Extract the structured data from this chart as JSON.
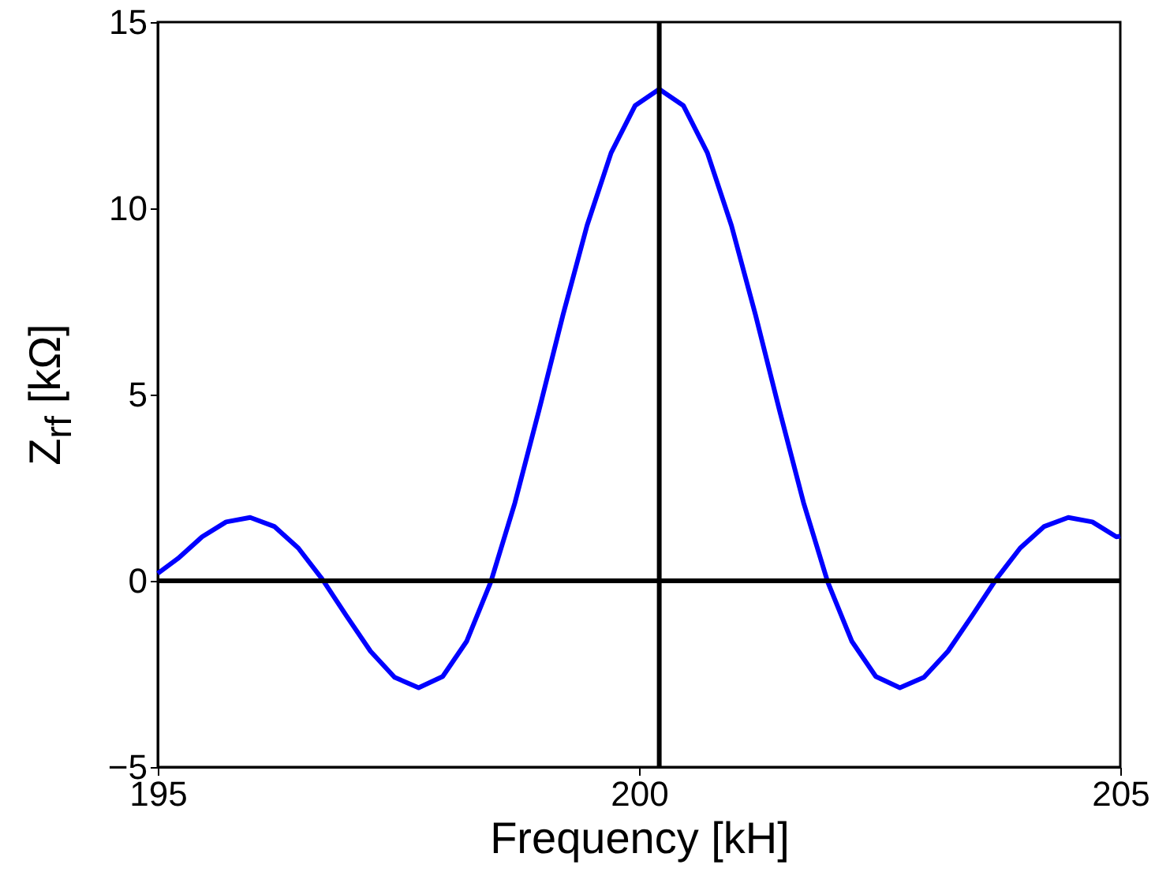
{
  "chart_data": {
    "type": "line",
    "xlabel": "Frequency [kH]",
    "ylabel": "Z$_{rf}$ [kΩ]",
    "x": [
      195,
      195.21,
      195.46,
      195.71,
      195.96,
      196.21,
      196.46,
      196.71,
      196.96,
      197.21,
      197.46,
      197.71,
      197.96,
      198.21,
      198.46,
      198.71,
      198.96,
      199.21,
      199.46,
      199.71,
      199.96,
      200.21,
      200.46,
      200.71,
      200.96,
      201.21,
      201.46,
      201.71,
      201.96,
      202.21,
      202.46,
      202.71,
      202.96,
      203.21,
      203.46,
      203.71,
      203.96,
      204.21,
      204.46,
      204.71,
      204.96,
      205
    ],
    "series": [
      {
        "color": "#0000ff",
        "values": [
          0.2,
          0.6,
          1.18,
          1.58,
          1.7,
          1.46,
          0.88,
          0.04,
          -0.94,
          -1.89,
          -2.59,
          -2.87,
          -2.57,
          -1.62,
          -0.03,
          2.09,
          4.57,
          7.14,
          9.54,
          11.49,
          12.76,
          13.2,
          12.76,
          11.49,
          9.54,
          7.14,
          4.57,
          2.09,
          -0.03,
          -1.62,
          -2.57,
          -2.87,
          -2.59,
          -1.89,
          -0.94,
          0.04,
          0.88,
          1.46,
          1.7,
          1.58,
          1.18,
          1.2
        ]
      }
    ],
    "xlim": [
      195,
      205
    ],
    "xticks": [
      195,
      200,
      205
    ],
    "ylim": [
      -5,
      15
    ],
    "yticks": [
      -5,
      0,
      5,
      10,
      15
    ],
    "ref_lines": [
      {
        "axis": "y",
        "value": 0,
        "color": "#000000"
      },
      {
        "axis": "x",
        "value": 200.21,
        "color": "#000000"
      }
    ],
    "grid": false,
    "line_style": "solid",
    "marker": "none"
  }
}
